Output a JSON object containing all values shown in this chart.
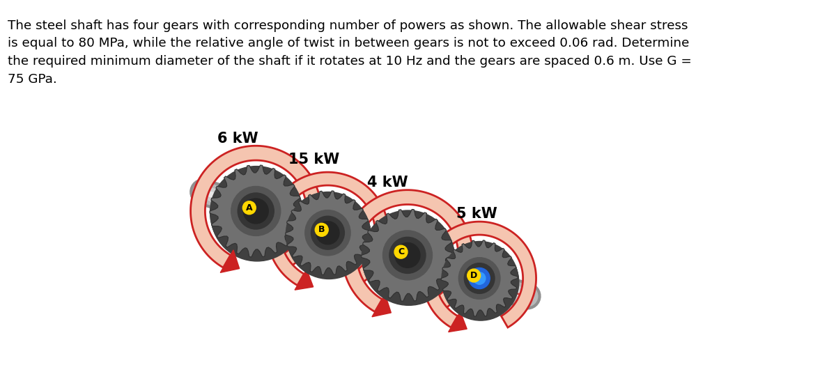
{
  "title_text": "The steel shaft has four gears with corresponding number of powers as shown. The allowable shear stress\nis equal to 80 MPa, while the relative angle of twist in between gears is not to exceed 0.06 rad. Determine\nthe required minimum diameter of the shaft if it rotates at 10 Hz and the gears are spaced 0.6 m. Use G =\n75 GPa.",
  "title_fontsize": 13.2,
  "title_color": "#000000",
  "background_color": "#ffffff",
  "power_labels": [
    "6 kW",
    "15 kW",
    "4 kW",
    "5 kW"
  ],
  "gear_labels": [
    "A",
    "B",
    "C",
    "D"
  ],
  "gear_label_color": "#FFD700",
  "gear_D_label_color": "#FFD700",
  "power_fontsize": 15,
  "fig_width": 12.0,
  "fig_height": 5.34,
  "arrow_fill": "#F5C5B0",
  "arrow_edge": "#CC2222",
  "shaft_color_light": "#D8D8D8",
  "shaft_color_mid": "#B0B0B0",
  "shaft_color_dark": "#888888",
  "gear_outer_color": "#888888",
  "gear_inner_color": "#505050",
  "gear_tooth_edge": "#333333",
  "hub_color": "#303030",
  "hub_blue": "#2266DD"
}
